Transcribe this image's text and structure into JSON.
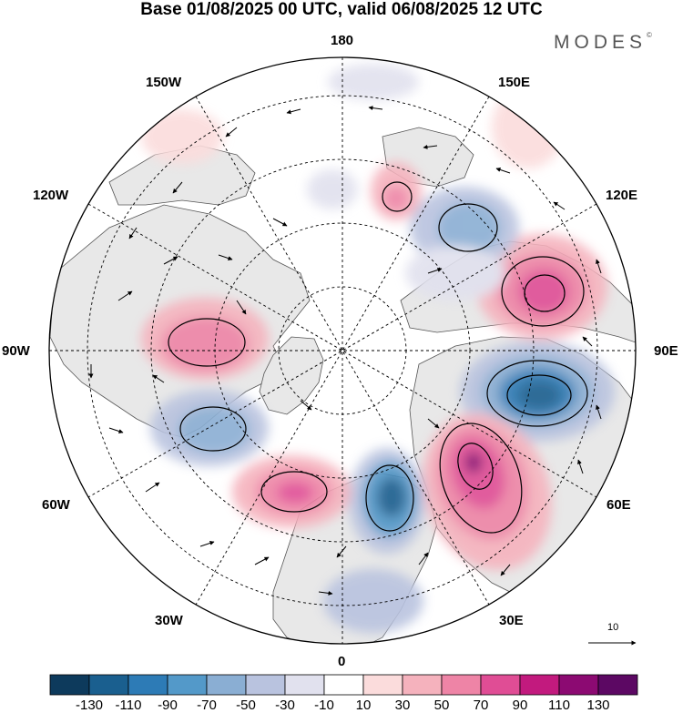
{
  "title": "Base 01/08/2025 00 UTC, valid 06/08/2025 12 UTC",
  "brand": "MODES",
  "brand_mark": "©",
  "longitude_labels": {
    "lon_180": "180",
    "lon_150e": "150E",
    "lon_120e": "120E",
    "lon_90e": "90E",
    "lon_60e": "60E",
    "lon_30e": "30E",
    "lon_0": "0",
    "lon_30w": "30W",
    "lon_60w": "60W",
    "lon_90w": "90W",
    "lon_120w": "120W",
    "lon_150w": "150W"
  },
  "reference_vector_label": "10",
  "colorbar": {
    "colors": [
      "#0d3a5c",
      "#1a5f8f",
      "#2d7bb6",
      "#5399c9",
      "#8aaed3",
      "#b9c3df",
      "#e1e1ee",
      "#ffffff",
      "#fbdcdc",
      "#f5b2bd",
      "#ee84a6",
      "#e04d95",
      "#c21a7e",
      "#8c0a72",
      "#5c0863"
    ],
    "labels": [
      "-130",
      "-110",
      "-90",
      "-70",
      "-50",
      "-30",
      "-10",
      "10",
      "30",
      "50",
      "70",
      "90",
      "110",
      "130"
    ]
  },
  "colors": {
    "land": "#e8e8e8",
    "ocean": "#ffffff",
    "coast": "#555555",
    "grid": "#000000",
    "contour": "#000000"
  }
}
